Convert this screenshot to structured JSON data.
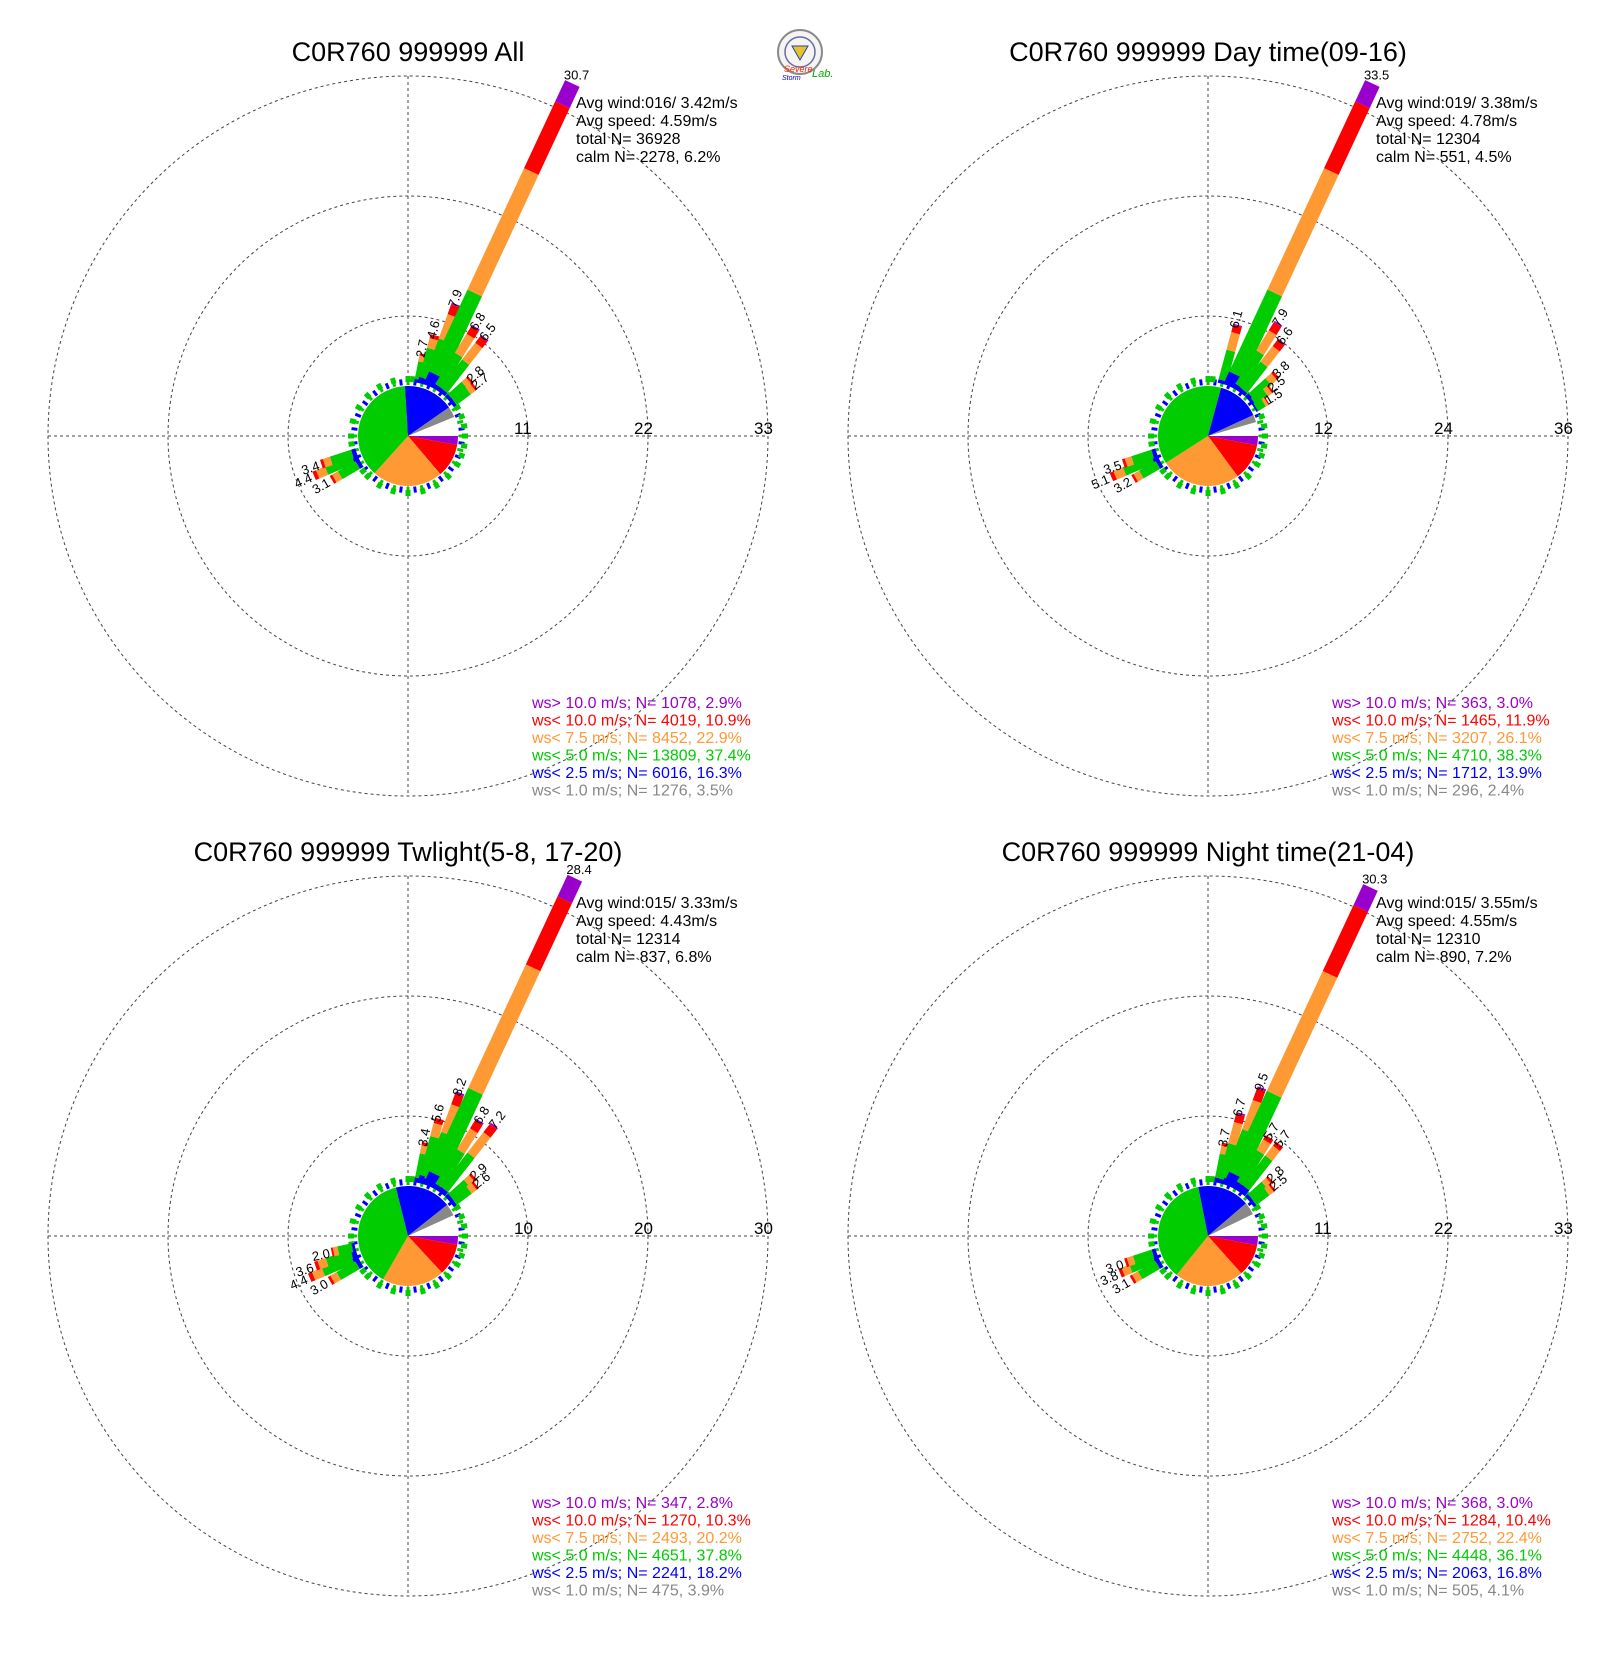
{
  "logo": {
    "text": [
      "Severe",
      "Storm",
      "Lab."
    ],
    "colors": [
      "#ff2200",
      "#0000cc",
      "#00aa00"
    ]
  },
  "sector_order": [
    "N",
    "NNE",
    "NE",
    "ENE",
    "E",
    "ESE",
    "SE",
    "SSE",
    "S",
    "SSW",
    "SW",
    "WSW",
    "W",
    "WNW",
    "NW",
    "NNW"
  ],
  "colors": {
    "ws_gt_10": "#9900cc",
    "ws_lt_10": "#ff0000",
    "ws_lt_7_5": "#ff9933",
    "ws_lt_5": "#00cc00",
    "ws_lt_2_5": "#0000ff",
    "ws_lt_1": "#888888"
  },
  "chart_data": [
    {
      "type": "wind-rose",
      "title": "C0R760 999999 All",
      "rlim": [
        0,
        33
      ],
      "ring_labels": [
        "11",
        "22",
        "33"
      ],
      "grid": true,
      "stats": [
        "Avg wind:016/ 3.42m/s",
        "Avg speed: 4.59m/s",
        "total N=      36928",
        "calm N=   2278,   6.2%"
      ],
      "legend": [
        {
          "text": "ws> 10.0 m/s; N=  1078,  2.9%",
          "color": "#9900cc"
        },
        {
          "text": "ws< 10.0 m/s; N=  4019, 10.9%",
          "color": "#ff0000"
        },
        {
          "text": "ws<  7.5 m/s; N=  8452, 22.9%",
          "color": "#ff9933"
        },
        {
          "text": "ws<  5.0 m/s; N= 13809, 37.4%",
          "color": "#00cc00"
        },
        {
          "text": "ws<  2.5 m/s; N=  6016, 16.3%",
          "color": "#0000ff"
        },
        {
          "text": "ws<  1.0 m/s; N=  1276,  3.5%",
          "color": "#888888"
        }
      ],
      "pie": {
        "ws_gt_10": 2.9,
        "ws_lt_10": 10.9,
        "ws_lt_7_5": 22.9,
        "ws_lt_5": 37.4,
        "ws_lt_2_5": 16.3,
        "ws_lt_1": 3.5,
        "calm": 6.2
      },
      "bars": [
        {
          "dir": 11.25,
          "label": "2.7",
          "total": 2.7
        },
        {
          "dir": 15,
          "label": "4.6",
          "total": 4.6
        },
        {
          "dir": 20,
          "label": "7.9",
          "total": 7.9
        },
        {
          "dir": 25,
          "label": "30.7",
          "total": 30.7
        },
        {
          "dir": 32,
          "label": "6.8",
          "total": 6.8
        },
        {
          "dir": 38,
          "label": "6.5",
          "total": 6.5
        },
        {
          "dir": 48,
          "label": "2.8",
          "total": 2.8
        },
        {
          "dir": 53,
          "label": "2.7",
          "total": 2.7
        },
        {
          "dir": 247,
          "label": "4.4",
          "total": 4.4
        },
        {
          "dir": 252,
          "label": "3.4",
          "total": 3.4
        },
        {
          "dir": 240,
          "label": "3.1",
          "total": 3.1
        }
      ]
    },
    {
      "type": "wind-rose",
      "title": "C0R760 999999 Day time(09-16)",
      "rlim": [
        0,
        36
      ],
      "ring_labels": [
        "12",
        "24",
        "36"
      ],
      "grid": true,
      "stats": [
        "Avg wind:019/ 3.38m/s",
        "Avg speed: 4.78m/s",
        "total N=      12304",
        "calm N=    551,   4.5%"
      ],
      "legend": [
        {
          "text": "ws> 10.0 m/s; N=   363,  3.0%",
          "color": "#9900cc"
        },
        {
          "text": "ws< 10.0 m/s; N=  1465, 11.9%",
          "color": "#ff0000"
        },
        {
          "text": "ws<  7.5 m/s; N=  3207, 26.1%",
          "color": "#ff9933"
        },
        {
          "text": "ws<  5.0 m/s; N=  4710, 38.3%",
          "color": "#00cc00"
        },
        {
          "text": "ws<  2.5 m/s; N=  1712, 13.9%",
          "color": "#0000ff"
        },
        {
          "text": "ws<  1.0 m/s; N=   296,  2.4%",
          "color": "#888888"
        }
      ],
      "pie": {
        "ws_gt_10": 3.0,
        "ws_lt_10": 11.9,
        "ws_lt_7_5": 26.1,
        "ws_lt_5": 38.3,
        "ws_lt_2_5": 13.9,
        "ws_lt_1": 2.4,
        "calm": 4.5
      },
      "bars": [
        {
          "dir": 15,
          "label": "6.1",
          "total": 6.1
        },
        {
          "dir": 25,
          "label": "33.5",
          "total": 33.5
        },
        {
          "dir": 32,
          "label": "7.9",
          "total": 7.9
        },
        {
          "dir": 38,
          "label": "6.6",
          "total": 6.6
        },
        {
          "dir": 48,
          "label": "3.8",
          "total": 3.8
        },
        {
          "dir": 53,
          "label": "2.5",
          "total": 2.5
        },
        {
          "dir": 59,
          "label": "1.5",
          "total": 1.5
        },
        {
          "dir": 247,
          "label": "5.1",
          "total": 5.1
        },
        {
          "dir": 252,
          "label": "3.5",
          "total": 3.5
        },
        {
          "dir": 240,
          "label": "3.2",
          "total": 3.2
        }
      ]
    },
    {
      "type": "wind-rose",
      "title": "C0R760 999999 Twlight(5-8, 17-20)",
      "rlim": [
        0,
        30
      ],
      "ring_labels": [
        "10",
        "20",
        "30"
      ],
      "grid": true,
      "stats": [
        "Avg wind:015/ 3.33m/s",
        "Avg speed: 4.43m/s",
        "total N=      12314",
        "calm N=    837,   6.8%"
      ],
      "legend": [
        {
          "text": "ws> 10.0 m/s; N=   347,  2.8%",
          "color": "#9900cc"
        },
        {
          "text": "ws< 10.0 m/s; N=  1270, 10.3%",
          "color": "#ff0000"
        },
        {
          "text": "ws<  7.5 m/s; N=  2493, 20.2%",
          "color": "#ff9933"
        },
        {
          "text": "ws<  5.0 m/s; N=  4651, 37.8%",
          "color": "#00cc00"
        },
        {
          "text": "ws<  2.5 m/s; N=  2241, 18.2%",
          "color": "#0000ff"
        },
        {
          "text": "ws<  1.0 m/s; N=   475,  3.9%",
          "color": "#888888"
        }
      ],
      "pie": {
        "ws_gt_10": 2.8,
        "ws_lt_10": 10.3,
        "ws_lt_7_5": 20.2,
        "ws_lt_5": 37.8,
        "ws_lt_2_5": 18.2,
        "ws_lt_1": 3.9,
        "calm": 6.8
      },
      "bars": [
        {
          "dir": 11.25,
          "label": "3.4",
          "total": 3.4
        },
        {
          "dir": 15,
          "label": "5.6",
          "total": 5.6
        },
        {
          "dir": 20,
          "label": "8.2",
          "total": 8.2
        },
        {
          "dir": 25,
          "label": "28.4",
          "total": 28.4
        },
        {
          "dir": 32,
          "label": "6.8",
          "total": 6.8
        },
        {
          "dir": 38,
          "label": "7.2",
          "total": 7.2
        },
        {
          "dir": 48,
          "label": "2.9",
          "total": 2.9
        },
        {
          "dir": 53,
          "label": "2.6",
          "total": 2.6
        },
        {
          "dir": 247,
          "label": "4.4",
          "total": 4.4
        },
        {
          "dir": 252,
          "label": "3.6",
          "total": 3.6
        },
        {
          "dir": 258,
          "label": "2.0",
          "total": 2.0
        },
        {
          "dir": 240,
          "label": "3.0",
          "total": 3.0
        }
      ]
    },
    {
      "type": "wind-rose",
      "title": "C0R760 999999 Night time(21-04)",
      "rlim": [
        0,
        33
      ],
      "ring_labels": [
        "11",
        "22",
        "33"
      ],
      "grid": true,
      "stats": [
        "Avg wind:015/ 3.55m/s",
        "Avg speed: 4.55m/s",
        "total N=      12310",
        "calm N=    890,   7.2%"
      ],
      "legend": [
        {
          "text": "ws> 10.0 m/s; N=   368,  3.0%",
          "color": "#9900cc"
        },
        {
          "text": "ws< 10.0 m/s; N=  1284, 10.4%",
          "color": "#ff0000"
        },
        {
          "text": "ws<  7.5 m/s; N=  2752, 22.4%",
          "color": "#ff9933"
        },
        {
          "text": "ws<  5.0 m/s; N=  4448, 36.1%",
          "color": "#00cc00"
        },
        {
          "text": "ws<  2.5 m/s; N=  2063, 16.8%",
          "color": "#0000ff"
        },
        {
          "text": "ws<  1.0 m/s; N=   505,  4.1%",
          "color": "#888888"
        }
      ],
      "pie": {
        "ws_gt_10": 3.0,
        "ws_lt_10": 10.4,
        "ws_lt_7_5": 22.4,
        "ws_lt_5": 36.1,
        "ws_lt_2_5": 16.8,
        "ws_lt_1": 4.1,
        "calm": 7.2
      },
      "bars": [
        {
          "dir": 11.25,
          "label": "3.7",
          "total": 3.7
        },
        {
          "dir": 15,
          "label": "6.7",
          "total": 6.7
        },
        {
          "dir": 20,
          "label": "9.5",
          "total": 9.5
        },
        {
          "dir": 25,
          "label": "30.3",
          "total": 30.3
        },
        {
          "dir": 32,
          "label": "5.7",
          "total": 5.7
        },
        {
          "dir": 38,
          "label": "5.7",
          "total": 5.7
        },
        {
          "dir": 48,
          "label": "2.8",
          "total": 2.8
        },
        {
          "dir": 53,
          "label": "2.5",
          "total": 2.5
        },
        {
          "dir": 247,
          "label": "3.8",
          "total": 3.8
        },
        {
          "dir": 252,
          "label": "3.0",
          "total": 3.0
        },
        {
          "dir": 240,
          "label": "3.1",
          "total": 3.1
        }
      ]
    }
  ]
}
